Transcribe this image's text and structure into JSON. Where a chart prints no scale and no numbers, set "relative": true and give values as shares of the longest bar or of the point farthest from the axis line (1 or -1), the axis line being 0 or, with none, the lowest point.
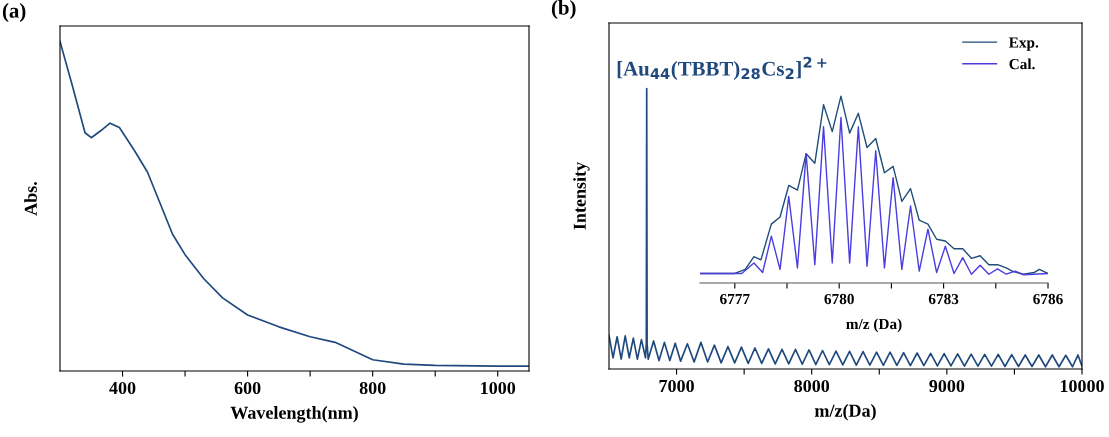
{
  "chart_data": [
    {
      "type": "line",
      "title": "(a)",
      "xlabel": "Wavelength(nm)",
      "ylabel": "Abs.",
      "relative": true,
      "tick_labels": "x",
      "xlim": [
        300,
        1050
      ],
      "xticks": [
        400,
        {
          "value": 500,
          "label": null
        },
        600,
        {
          "value": 700,
          "label": null
        },
        800,
        {
          "value": 900,
          "label": null
        },
        1000
      ],
      "series": [
        {
          "color": "#1f497d",
          "x": [
            300,
            320,
            340,
            350,
            365,
            380,
            395,
            420,
            440,
            460,
            480,
            500,
            530,
            560,
            600,
            650,
            700,
            740,
            770,
            800,
            850,
            900,
            1000,
            1050
          ],
          "values": [
            1.0,
            0.864,
            0.723,
            0.708,
            0.729,
            0.752,
            0.739,
            0.666,
            0.603,
            0.509,
            0.415,
            0.353,
            0.28,
            0.222,
            0.17,
            0.134,
            0.104,
            0.087,
            0.061,
            0.034,
            0.021,
            0.017,
            0.015,
            0.015
          ]
        }
      ]
    },
    {
      "type": "line",
      "title": "(b)",
      "xlabel": "m/z(Da)",
      "ylabel": "Intensity",
      "relative": true,
      "tick_labels": "x",
      "xlim": [
        6500,
        10000
      ],
      "xticks": [
        7000,
        {
          "value": 7500,
          "label": null
        },
        8000,
        {
          "value": 8500,
          "label": null
        },
        9000,
        {
          "value": 9500,
          "label": null
        },
        10000
      ],
      "annotations": [
        {
          "text": "[Au$_{44}$(TBBT)$_{28}$Cs$_{2}$]$^{2+}$",
          "x": 6779,
          "y": 1.0
        }
      ],
      "series": [
        {
          "color": "#1f497d",
          "x": [
            6500,
            6530,
            6560,
            6590,
            6620,
            6650,
            6680,
            6710,
            6740,
            6770,
            6776,
            6779,
            6782,
            6790,
            6830,
            6870,
            6910,
            6950,
            6990,
            7030,
            7080,
            7130,
            7180,
            7230,
            7280,
            7330,
            7380,
            7430,
            7480,
            7530,
            7580,
            7630,
            7680,
            7730,
            7780,
            7830,
            7880,
            7930,
            7980,
            8030,
            8080,
            8130,
            8180,
            8230,
            8280,
            8330,
            8380,
            8430,
            8480,
            8530,
            8580,
            8630,
            8680,
            8730,
            8780,
            8830,
            8880,
            8930,
            8980,
            9030,
            9080,
            9130,
            9180,
            9230,
            9280,
            9330,
            9380,
            9430,
            9480,
            9530,
            9580,
            9630,
            9680,
            9730,
            9780,
            9830,
            9880,
            9930,
            9970,
            10000
          ],
          "values": [
            0.12,
            0.04,
            0.115,
            0.035,
            0.118,
            0.04,
            0.11,
            0.035,
            0.105,
            0.04,
            0.09,
            1.0,
            0.09,
            0.035,
            0.1,
            0.03,
            0.095,
            0.03,
            0.092,
            0.028,
            0.09,
            0.025,
            0.095,
            0.025,
            0.085,
            0.022,
            0.08,
            0.022,
            0.078,
            0.02,
            0.075,
            0.02,
            0.072,
            0.018,
            0.07,
            0.018,
            0.07,
            0.017,
            0.068,
            0.016,
            0.066,
            0.016,
            0.064,
            0.015,
            0.063,
            0.014,
            0.062,
            0.014,
            0.06,
            0.013,
            0.06,
            0.013,
            0.058,
            0.012,
            0.057,
            0.012,
            0.056,
            0.011,
            0.055,
            0.011,
            0.054,
            0.01,
            0.053,
            0.01,
            0.052,
            0.01,
            0.052,
            0.009,
            0.051,
            0.009,
            0.05,
            0.009,
            0.05,
            0.008,
            0.05,
            0.008,
            0.049,
            0.008,
            0.05,
            0.01
          ]
        }
      ]
    },
    {
      "type": "line",
      "xlabel": "m/z (Da)",
      "relative": true,
      "tick_labels": "x",
      "legend": "top right",
      "xlim": [
        6776,
        6786
      ],
      "xticks": [
        6777,
        {
          "value": 6778.5,
          "label": null
        },
        6780,
        {
          "value": 6781.5,
          "label": null
        },
        6783,
        {
          "value": 6784.5,
          "label": null
        },
        6786
      ],
      "series": [
        {
          "name": "Exp.",
          "color": "#1f4e79",
          "x": [
            6776.0,
            6777.0,
            6777.3,
            6777.55,
            6777.75,
            6778.05,
            6778.3,
            6778.55,
            6778.8,
            6779.05,
            6779.3,
            6779.55,
            6779.8,
            6780.05,
            6780.3,
            6780.55,
            6780.8,
            6781.05,
            6781.3,
            6781.55,
            6781.8,
            6782.05,
            6782.3,
            6782.55,
            6782.8,
            6783.05,
            6783.3,
            6783.55,
            6783.8,
            6784.05,
            6784.3,
            6784.55,
            6784.8,
            6785.0,
            6785.3,
            6785.6,
            6785.75,
            6786.0
          ],
          "values": [
            0.051,
            0.051,
            0.073,
            0.141,
            0.124,
            0.315,
            0.353,
            0.522,
            0.497,
            0.692,
            0.641,
            0.954,
            0.81,
            1.0,
            0.802,
            0.908,
            0.725,
            0.773,
            0.59,
            0.624,
            0.437,
            0.505,
            0.336,
            0.315,
            0.234,
            0.225,
            0.183,
            0.183,
            0.132,
            0.146,
            0.098,
            0.098,
            0.081,
            0.061,
            0.047,
            0.056,
            0.073,
            0.051
          ]
        },
        {
          "name": "Cal.",
          "color": "#4b3ce0",
          "x": [
            6776.0,
            6777.2,
            6777.55,
            6777.8,
            6778.05,
            6778.3,
            6778.55,
            6778.8,
            6779.05,
            6779.3,
            6779.55,
            6779.8,
            6780.05,
            6780.3,
            6780.55,
            6780.8,
            6781.05,
            6781.3,
            6781.55,
            6781.8,
            6782.05,
            6782.3,
            6782.55,
            6782.8,
            6783.05,
            6783.3,
            6783.55,
            6783.8,
            6784.05,
            6784.3,
            6784.55,
            6784.8,
            6785.05,
            6785.3,
            6786.0
          ],
          "values": [
            0.051,
            0.051,
            0.107,
            0.056,
            0.251,
            0.073,
            0.463,
            0.081,
            0.692,
            0.098,
            0.836,
            0.107,
            0.886,
            0.107,
            0.836,
            0.09,
            0.708,
            0.081,
            0.564,
            0.073,
            0.412,
            0.064,
            0.288,
            0.056,
            0.197,
            0.051,
            0.136,
            0.047,
            0.095,
            0.047,
            0.076,
            0.047,
            0.064,
            0.044,
            0.051
          ]
        }
      ]
    }
  ]
}
